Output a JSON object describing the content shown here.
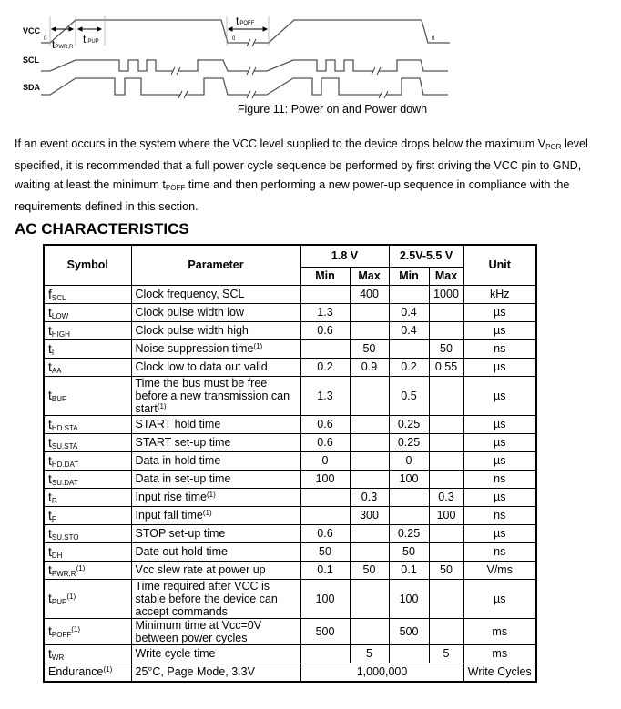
{
  "figure": {
    "signals": [
      "VCC",
      "SCL",
      "SDA"
    ],
    "zero_label": "0",
    "t_pwr_r": {
      "base": "t",
      "sub": "PWR,R"
    },
    "t_pup": {
      "base": "t",
      "sub": "PUP"
    },
    "t_poff": {
      "base": "t",
      "sub": "POFF"
    },
    "caption": "Figure 11: Power on and Power down"
  },
  "paragraph": {
    "p1": "If an event occurs in the system where the VCC level supplied to the device drops below the maximum V",
    "p1_sub": "POR",
    "p2": " level specified, it is recommended that a full power cycle sequence be performed by first driving the VCC pin to GND, waiting at least the minimum t",
    "p2_sub": "POFF",
    "p3": " time and then performing a new power-up sequence in compliance with the requirements defined in this section."
  },
  "heading": "AC CHARACTERISTICS",
  "table": {
    "headers": {
      "symbol": "Symbol",
      "parameter": "Parameter",
      "v18": "1.8 V",
      "v25": "2.5V-5.5 V",
      "unit": "Unit",
      "min": "Min",
      "max": "Max"
    },
    "rows": [
      {
        "sym": "f",
        "sub": "SCL",
        "param": "Clock frequency, SCL",
        "min18": "",
        "max18": "400",
        "min25": "",
        "max25": "1000",
        "unit": "kHz"
      },
      {
        "sym": "t",
        "sub": "LOW",
        "param": "Clock pulse width low",
        "min18": "1.3",
        "max18": "",
        "min25": "0.4",
        "max25": "",
        "unit": "µs"
      },
      {
        "sym": "t",
        "sub": "HIGH",
        "param": "Clock pulse width high",
        "min18": "0.6",
        "max18": "",
        "min25": "0.4",
        "max25": "",
        "unit": "µs"
      },
      {
        "sym": "t",
        "sub": "I",
        "param": "Noise suppression time",
        "note": "(1)",
        "min18": "",
        "max18": "50",
        "min25": "",
        "max25": "50",
        "unit": "ns"
      },
      {
        "sym": "t",
        "sub": "AA",
        "param": "Clock low to data out valid",
        "min18": "0.2",
        "max18": "0.9",
        "min25": "0.2",
        "max25": "0.55",
        "unit": "µs"
      },
      {
        "sym": "t",
        "sub": "BUF",
        "param": "Time the bus must be free before a new transmission can start",
        "note": "(1)",
        "min18": "1.3",
        "max18": "",
        "min25": "0.5",
        "max25": "",
        "unit": "µs"
      },
      {
        "sym": "t",
        "sub": "HD.STA",
        "param": "START hold time",
        "min18": "0.6",
        "max18": "",
        "min25": "0.25",
        "max25": "",
        "unit": "µs"
      },
      {
        "sym": "t",
        "sub": "SU.STA",
        "param": "START set-up time",
        "min18": "0.6",
        "max18": "",
        "min25": "0.25",
        "max25": "",
        "unit": "µs"
      },
      {
        "sym": "t",
        "sub": "HD.DAT",
        "param": "Data in hold time",
        "min18": "0",
        "max18": "",
        "min25": "0",
        "max25": "",
        "unit": "µs"
      },
      {
        "sym": "t",
        "sub": "SU.DAT",
        "param": "Data in set-up time",
        "min18": "100",
        "max18": "",
        "min25": "100",
        "max25": "",
        "unit": "ns"
      },
      {
        "sym": "t",
        "sub": "R",
        "param": "Input rise time",
        "note": "(1)",
        "min18": "",
        "max18": "0.3",
        "min25": "",
        "max25": "0.3",
        "unit": "µs"
      },
      {
        "sym": "t",
        "sub": "F",
        "param": "Input fall time",
        "note": "(1)",
        "min18": "",
        "max18": "300",
        "min25": "",
        "max25": "100",
        "unit": "ns"
      },
      {
        "sym": "t",
        "sub": "SU.STO",
        "param": "STOP set-up time",
        "min18": "0.6",
        "max18": "",
        "min25": "0.25",
        "max25": "",
        "unit": "µs"
      },
      {
        "sym": "t",
        "sub": "DH",
        "param": "Date out hold time",
        "min18": "50",
        "max18": "",
        "min25": "50",
        "max25": "",
        "unit": "ns"
      },
      {
        "sym": "t",
        "sub": "PWR,R",
        "symnote": "(1)",
        "param": "Vcc slew rate at power up",
        "min18": "0.1",
        "max18": "50",
        "min25": "0.1",
        "max25": "50",
        "unit": "V/ms"
      },
      {
        "sym": "t",
        "sub": "PUP",
        "symnote": "(1)",
        "param": "Time required after VCC is stable before the device can accept commands",
        "min18": "100",
        "max18": "",
        "min25": "100",
        "max25": "",
        "unit": "µs"
      },
      {
        "sym": "t",
        "sub": "POFF",
        "symnote": "(1)",
        "param": "Minimum time at Vcc=0V between power cycles",
        "min18": "500",
        "max18": "",
        "min25": "500",
        "max25": "",
        "unit": "ms"
      },
      {
        "sym": "t",
        "sub": "WR",
        "param": "Write cycle time",
        "min18": "",
        "max18": "5",
        "min25": "",
        "max25": "5",
        "unit": "ms"
      }
    ],
    "endurance": {
      "sym": "Endurance",
      "symnote": "(1)",
      "param": "25°C, Page Mode, 3.3V",
      "value": "1,000,000",
      "unit": "Write Cycles"
    }
  }
}
